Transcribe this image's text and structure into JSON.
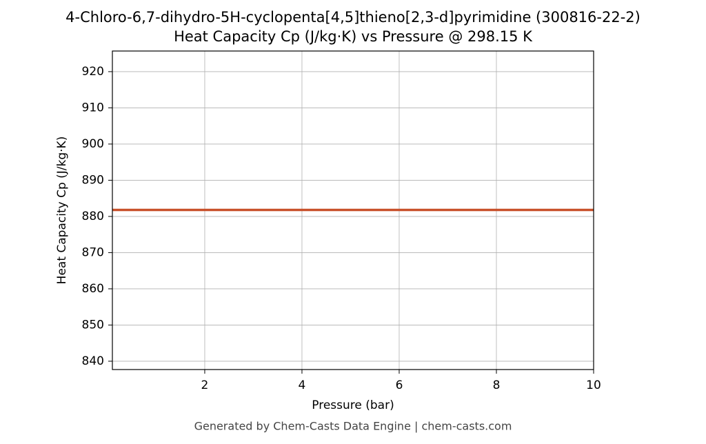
{
  "chart_data": {
    "type": "line",
    "title": "4-Chloro-6,7-dihydro-5H-cyclopenta[4,5]thieno[2,3-d]pyrimidine (300816-22-2)",
    "subtitle": "Heat Capacity Cp (J/kg·K) vs Pressure @ 298.15 K",
    "x_label": "Pressure (bar)",
    "y_label": "Heat Capacity Cp (J/kg·K)",
    "footer": "Generated by Chem-Casts Data Engine | chem-casts.com",
    "x": [
      0.1,
      1,
      2,
      3,
      4,
      5,
      6,
      7,
      8,
      9,
      10
    ],
    "series": [
      {
        "name": "Cp",
        "color": "#c8502a",
        "values": [
          881.8,
          881.8,
          881.8,
          881.8,
          881.8,
          881.8,
          881.8,
          881.8,
          881.8,
          881.8,
          881.8
        ]
      }
    ],
    "xlim": [
      0.1,
      10
    ],
    "xticks": [
      2,
      4,
      6,
      8,
      10
    ],
    "ylim": [
      837.7,
      925.7
    ],
    "yticks": [
      840,
      850,
      860,
      870,
      880,
      890,
      900,
      910,
      920
    ],
    "grid": true
  }
}
